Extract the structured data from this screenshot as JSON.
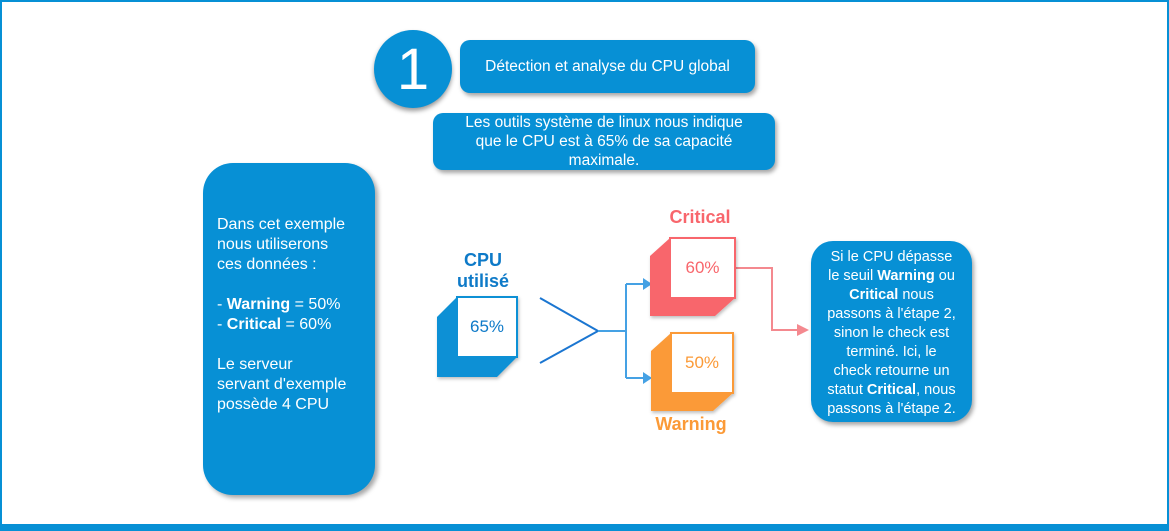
{
  "colors": {
    "primary_blue": "#0790D5",
    "chevron_blue": "#1B76D1",
    "branch_blue": "#45A1E4",
    "critical_red": "#F8666C",
    "critical_line_red": "#F4898F",
    "warning_orange": "#FB9A37",
    "text_white": "#FFFFFF"
  },
  "step": {
    "number": "1",
    "title": "Détection et analyse du CPU global"
  },
  "info_box": {
    "lines": [
      [
        {
          "t": "Les outils système de linux nous indique"
        }
      ],
      [
        {
          "t": "que le CPU est à 65% de sa capacité"
        }
      ],
      [
        {
          "t": "maximale."
        }
      ]
    ]
  },
  "example_box": {
    "lines": [
      [
        {
          "t": "Dans cet exemple"
        }
      ],
      [
        {
          "t": "nous utiliserons"
        }
      ],
      [
        {
          "t": "ces données :"
        }
      ],
      [],
      [
        {
          "t": "- "
        },
        {
          "t": "Warning",
          "b": true
        },
        {
          "t": " = 50%"
        }
      ],
      [
        {
          "t": "- "
        },
        {
          "t": "Critical",
          "b": true
        },
        {
          "t": " = 60%"
        }
      ],
      [],
      [
        {
          "t": "Le serveur"
        }
      ],
      [
        {
          "t": "servant d'exemple"
        }
      ],
      [
        {
          "t": "possède 4 CPU"
        }
      ]
    ]
  },
  "diagram": {
    "source": {
      "label_lines": [
        [
          {
            "t": "CPU"
          }
        ],
        [
          {
            "t": "utilisé"
          }
        ]
      ],
      "value": "65%"
    },
    "critical": {
      "label": "Critical",
      "value": "60%"
    },
    "warning": {
      "label": "Warning",
      "value": "50%"
    }
  },
  "conclusion_box": {
    "lines": [
      [
        {
          "t": "Si le CPU dépasse"
        }
      ],
      [
        {
          "t": "le seuil "
        },
        {
          "t": "Warning",
          "b": true
        },
        {
          "t": " ou"
        }
      ],
      [
        {
          "t": "Critical",
          "b": true
        },
        {
          "t": " nous"
        }
      ],
      [
        {
          "t": "passons à l'étape 2,"
        }
      ],
      [
        {
          "t": "sinon le check est"
        }
      ],
      [
        {
          "t": "terminé. Ici, le"
        }
      ],
      [
        {
          "t": "check retourne un"
        }
      ],
      [
        {
          "t": "statut "
        },
        {
          "t": "Critical",
          "b": true
        },
        {
          "t": ", nous"
        }
      ],
      [
        {
          "t": "passons à l'étape 2."
        }
      ]
    ]
  }
}
